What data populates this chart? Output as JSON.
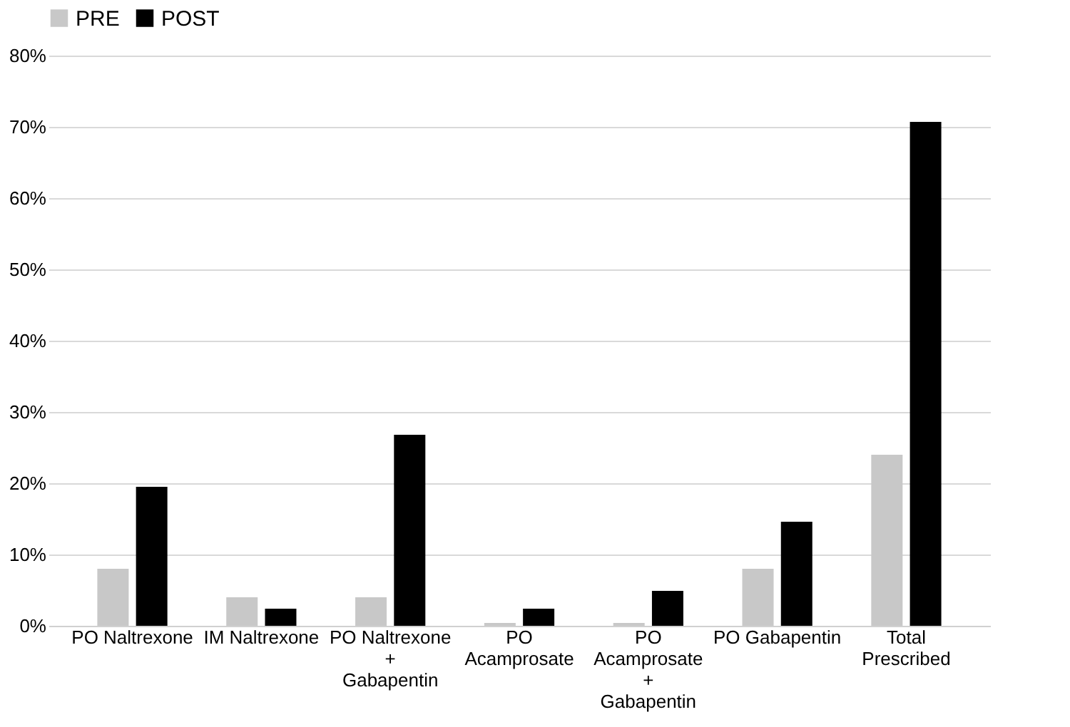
{
  "chart_data": {
    "type": "bar",
    "categories": [
      "PO Naltrexone",
      "IM Naltrexone",
      "PO Naltrexone\n+\nGabapentin",
      "PO\nAcamprosate",
      "PO\nAcamprosate\n+\nGabapentin",
      "PO Gabapentin",
      "Total\nPrescribed"
    ],
    "series": [
      {
        "name": "PRE",
        "color": "#c8c8c8",
        "values": [
          8,
          4,
          4,
          0.4,
          0.4,
          8,
          24
        ]
      },
      {
        "name": "POST",
        "color": "#000000",
        "values": [
          19.5,
          2.4,
          26.8,
          2.4,
          4.9,
          14.6,
          70.7
        ]
      }
    ],
    "ylim": [
      0,
      80
    ],
    "yticks": [
      {
        "value": 0,
        "label": "0%"
      },
      {
        "value": 10,
        "label": "10%"
      },
      {
        "value": 20,
        "label": "20%"
      },
      {
        "value": 30,
        "label": "30%"
      },
      {
        "value": 40,
        "label": "40%"
      },
      {
        "value": 50,
        "label": "50%"
      },
      {
        "value": 60,
        "label": "60%"
      },
      {
        "value": 70,
        "label": "70%"
      },
      {
        "value": 80,
        "label": "80%"
      }
    ],
    "grid": "y",
    "legend": "top"
  }
}
